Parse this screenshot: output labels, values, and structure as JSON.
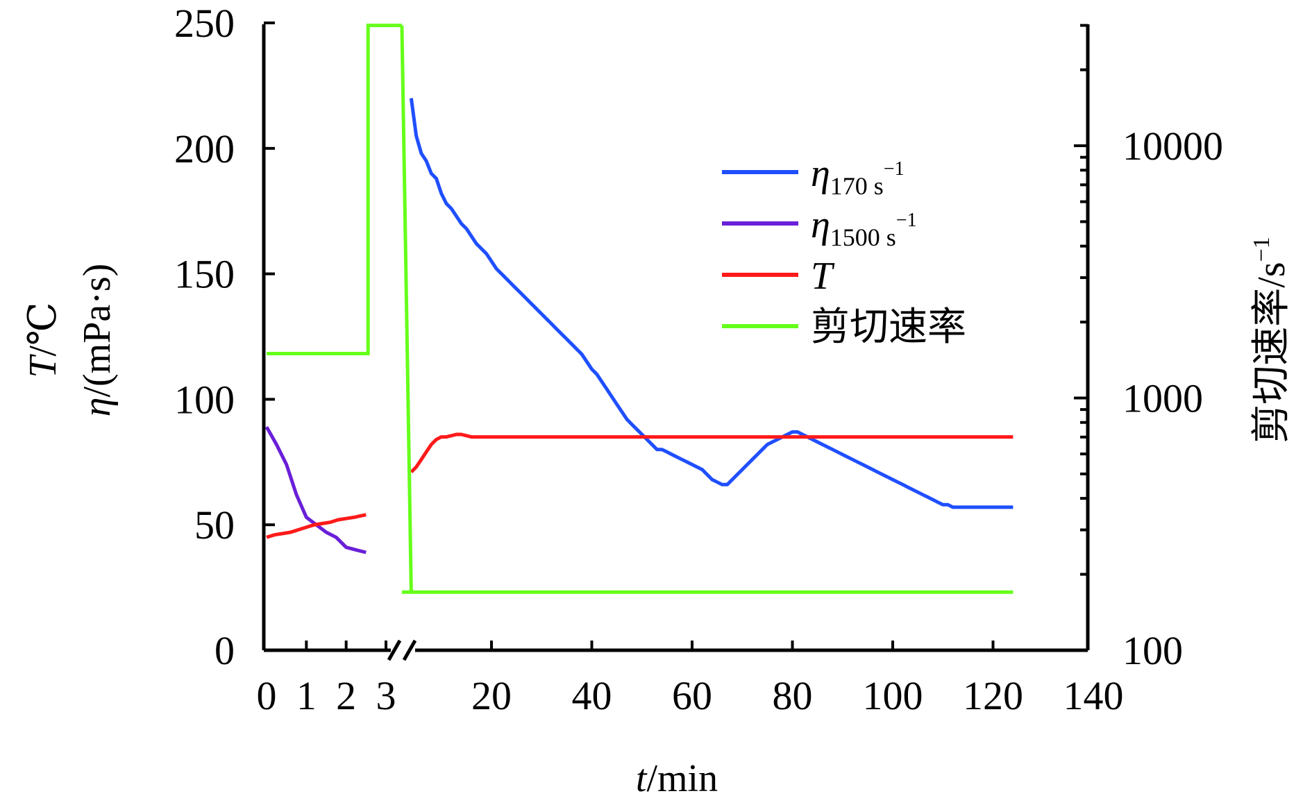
{
  "chart_data": {
    "type": "line",
    "x_axis": {
      "label_italic": "t",
      "label_rest": "/min",
      "broken": true,
      "break_ticks": [
        0,
        1,
        2,
        3
      ],
      "ticks": [
        20,
        40,
        60,
        80,
        100,
        120,
        140
      ],
      "range": [
        0,
        140
      ]
    },
    "y_left": {
      "label_line1_italic": "T",
      "label_line1_rest": "/℃",
      "label_line2_italic": "η",
      "label_line2_rest": "/(mPa·s)",
      "ticks": [
        0,
        50,
        100,
        150,
        200,
        250
      ],
      "range": [
        0,
        250
      ]
    },
    "y_right": {
      "label": "剪切速率/s",
      "label_sup": "−1",
      "scale": "log",
      "ticks": [
        100,
        1000,
        10000
      ],
      "range": [
        100,
        40000
      ]
    },
    "legend": {
      "placement": "upper-right",
      "items": [
        {
          "symbol": "η",
          "sub": "170 s",
          "sup": "−1",
          "color": "#1f4fff"
        },
        {
          "symbol": "η",
          "sub": "1500 s",
          "sup": "−1",
          "color": "#6a1fd8"
        },
        {
          "symbol": "T",
          "sub": "",
          "sup": "",
          "color": "#ff1a1a"
        },
        {
          "symbol": "剪切速率",
          "sub": "",
          "sup": "",
          "color": "#66ff1a"
        }
      ]
    },
    "series": [
      {
        "name": "η170 s−1",
        "axis": "left",
        "color": "#1f4fff",
        "x": [
          4,
          5,
          6,
          7,
          8,
          9,
          10,
          11,
          12,
          13,
          14,
          15,
          16,
          17,
          18,
          19,
          20,
          21,
          22,
          23,
          24,
          25,
          26,
          27,
          28,
          29,
          30,
          31,
          32,
          33,
          34,
          35,
          36,
          37,
          38,
          39,
          40,
          41,
          42,
          43,
          44,
          45,
          46,
          47,
          48,
          49,
          50,
          51,
          52,
          53,
          54,
          55,
          56,
          57,
          58,
          59,
          60,
          61,
          62,
          63,
          64,
          65,
          66,
          67,
          68,
          69,
          70,
          71,
          72,
          73,
          74,
          75,
          76,
          77,
          78,
          79,
          80,
          81,
          82,
          83,
          84,
          85,
          86,
          87,
          88,
          89,
          90,
          91,
          92,
          93,
          94,
          95,
          96,
          97,
          98,
          99,
          100,
          101,
          102,
          103,
          104,
          105,
          106,
          107,
          108,
          109,
          110,
          111,
          112,
          113,
          114,
          115,
          116,
          117,
          118,
          119,
          120,
          121,
          122,
          123,
          124
        ],
        "y": [
          220,
          205,
          198,
          195,
          190,
          188,
          182,
          178,
          176,
          173,
          170,
          168,
          165,
          162,
          160,
          158,
          155,
          152,
          150,
          148,
          146,
          144,
          142,
          140,
          138,
          136,
          134,
          132,
          130,
          128,
          126,
          124,
          122,
          120,
          118,
          115,
          112,
          110,
          107,
          104,
          101,
          98,
          95,
          92,
          90,
          88,
          86,
          84,
          82,
          80,
          80,
          79,
          78,
          77,
          76,
          75,
          74,
          73,
          72,
          70,
          68,
          67,
          66,
          66,
          68,
          70,
          72,
          74,
          76,
          78,
          80,
          82,
          83,
          84,
          85,
          86,
          87,
          87,
          86,
          85,
          84,
          83,
          82,
          81,
          80,
          79,
          78,
          77,
          76,
          75,
          74,
          73,
          72,
          71,
          70,
          69,
          68,
          67,
          66,
          65,
          64,
          63,
          62,
          61,
          60,
          59,
          58,
          58,
          57,
          57,
          57,
          57,
          57,
          57,
          57,
          57,
          57,
          57,
          57,
          57,
          57
        ]
      },
      {
        "name": "η1500 s−1",
        "axis": "left",
        "color": "#6a1fd8",
        "x": [
          0,
          0.25,
          0.5,
          0.75,
          1.0,
          1.25,
          1.5,
          1.75,
          2.0,
          2.25,
          2.5
        ],
        "y": [
          89,
          82,
          74,
          62,
          53,
          50,
          47,
          45,
          41,
          40,
          39
        ]
      },
      {
        "name": "T",
        "axis": "left",
        "color": "#ff1a1a",
        "x_break": [
          0,
          0.2,
          0.4,
          0.6,
          0.8,
          1.0,
          1.2,
          1.4,
          1.6,
          1.8,
          2.0,
          2.2,
          2.5
        ],
        "y_break": [
          45,
          46,
          46.5,
          47,
          48,
          49,
          50,
          50.5,
          51,
          52,
          52.5,
          53,
          54
        ],
        "x": [
          4,
          5,
          6,
          7,
          8,
          9,
          10,
          11,
          12,
          13,
          14,
          15,
          16,
          18,
          20,
          40,
          60,
          80,
          100,
          124
        ],
        "y": [
          71,
          73,
          76,
          79,
          82,
          84,
          85,
          85,
          85.5,
          86,
          86,
          85.5,
          85,
          85,
          85,
          85,
          85,
          85,
          85,
          85
        ]
      },
      {
        "name": "剪切速率",
        "axis": "right",
        "color": "#66ff1a",
        "x_break": [
          0,
          2.55,
          2.55,
          3.4,
          3.4
        ],
        "y_break": [
          1500,
          1500,
          30000,
          30000,
          30000
        ],
        "x": [
          3.4,
          4,
          124
        ],
        "y": [
          170,
          170,
          170
        ]
      }
    ]
  }
}
